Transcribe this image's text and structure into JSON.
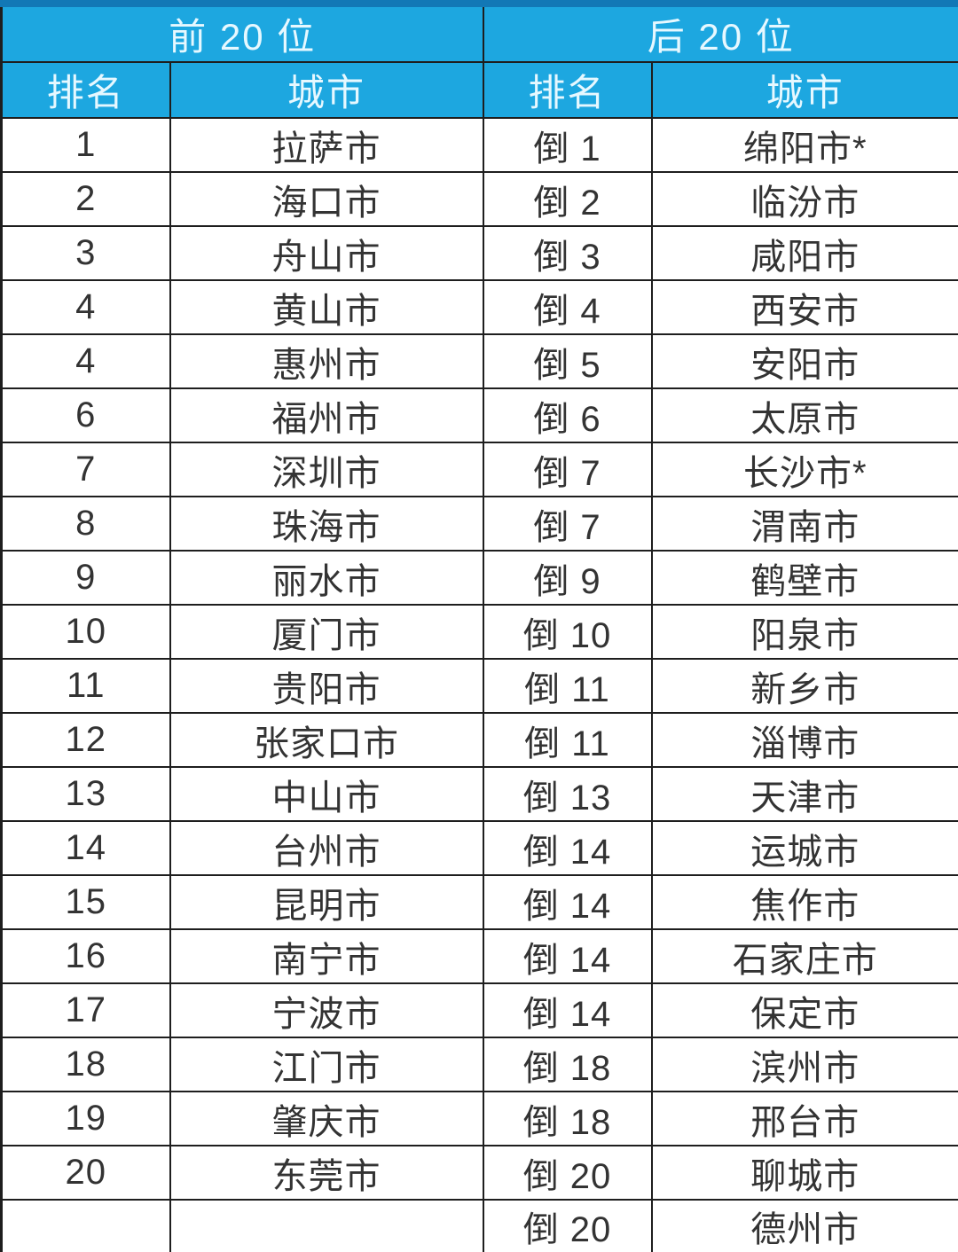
{
  "colors": {
    "header_bg": "#1da7e0",
    "top_strip": "#1278b6",
    "header_text": "#e6f8ff",
    "border": "#1e1e1e",
    "cell_text": "#333333",
    "page_bg": "#ffffff"
  },
  "chart_data": {
    "type": "table",
    "group_headers": [
      "前 20 位",
      "后 20 位"
    ],
    "column_headers": [
      "排名",
      "城市",
      "排名",
      "城市"
    ],
    "rows": [
      [
        "1",
        "拉萨市",
        "倒 1",
        "绵阳市*"
      ],
      [
        "2",
        "海口市",
        "倒 2",
        "临汾市"
      ],
      [
        "3",
        "舟山市",
        "倒 3",
        "咸阳市"
      ],
      [
        "4",
        "黄山市",
        "倒 4",
        "西安市"
      ],
      [
        "4",
        "惠州市",
        "倒 5",
        "安阳市"
      ],
      [
        "6",
        "福州市",
        "倒 6",
        "太原市"
      ],
      [
        "7",
        "深圳市",
        "倒 7",
        "长沙市*"
      ],
      [
        "8",
        "珠海市",
        "倒 7",
        "渭南市"
      ],
      [
        "9",
        "丽水市",
        "倒 9",
        "鹤壁市"
      ],
      [
        "10",
        "厦门市",
        "倒 10",
        "阳泉市"
      ],
      [
        "11",
        "贵阳市",
        "倒 11",
        "新乡市"
      ],
      [
        "12",
        "张家口市",
        "倒 11",
        "淄博市"
      ],
      [
        "13",
        "中山市",
        "倒 13",
        "天津市"
      ],
      [
        "14",
        "台州市",
        "倒 14",
        "运城市"
      ],
      [
        "15",
        "昆明市",
        "倒 14",
        "焦作市"
      ],
      [
        "16",
        "南宁市",
        "倒 14",
        "石家庄市"
      ],
      [
        "17",
        "宁波市",
        "倒 14",
        "保定市"
      ],
      [
        "18",
        "江门市",
        "倒 18",
        "滨州市"
      ],
      [
        "19",
        "肇庆市",
        "倒 18",
        "邢台市"
      ],
      [
        "20",
        "东莞市",
        "倒 20",
        "聊城市"
      ],
      [
        "",
        "",
        "倒 20",
        "德州市"
      ]
    ]
  }
}
